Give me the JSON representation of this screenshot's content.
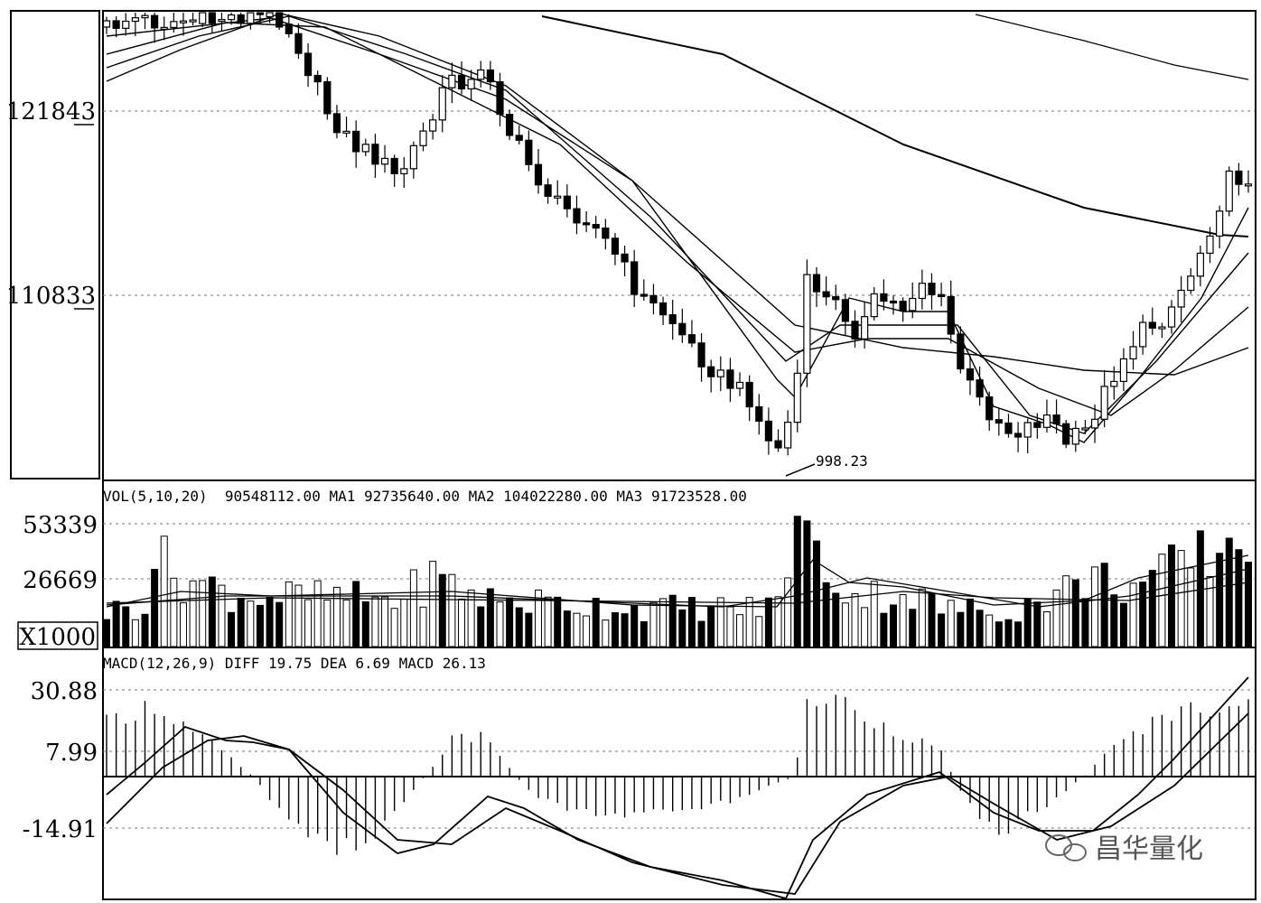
{
  "chart_data": [
    {
      "type": "candlestick",
      "panel": "price",
      "y_ticks": [
        "121843",
        "110833"
      ],
      "y_tick_values": [
        121843,
        110833
      ],
      "annotation": "998.23",
      "moving_averages": 5,
      "note_series": "approximate visual path"
    },
    {
      "type": "bar",
      "panel": "volume",
      "header": {
        "name": "VOL(5,10,20)",
        "value": "90548112.00",
        "ma1_label": "MA1",
        "ma1": "92735640.00",
        "ma2_label": "MA2",
        "ma2": "104022280.00",
        "ma3_label": "MA3",
        "ma3": "91723528.00"
      },
      "y_ticks": [
        "53339",
        "26669"
      ],
      "y_tick_values": [
        53339,
        26669
      ],
      "unit": "X1000"
    },
    {
      "type": "bar",
      "panel": "macd",
      "header": {
        "name": "MACD(12,26,9)",
        "diff_label": "DIFF",
        "diff": "19.75",
        "dea_label": "DEA",
        "dea": "6.69",
        "macd_label": "MACD",
        "macd": "26.13"
      },
      "y_ticks": [
        "30.88",
        "7.99",
        "-14.91"
      ],
      "y_tick_values": [
        30.88,
        7.99,
        -14.91
      ]
    }
  ],
  "watermark": "昌华量化"
}
